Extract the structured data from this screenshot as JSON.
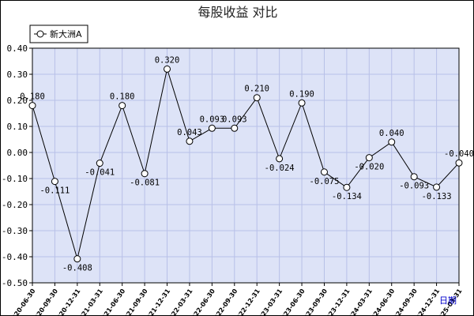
{
  "chart_data": {
    "type": "line",
    "title": "每股收益  对比",
    "xlabel": "日期",
    "ylabel": "",
    "ylim": [
      -0.5,
      0.4
    ],
    "yticks": [
      "0.40",
      "0.30",
      "0.20",
      "0.10",
      "0.00",
      "-0.10",
      "-0.20",
      "-0.30",
      "-0.40",
      "-0.50"
    ],
    "grid": true,
    "legend_position": "top-left",
    "colors": {
      "plot_background": "#dde3f7",
      "grid": "#b8c0e8",
      "line": "#000000",
      "marker_fill": "#ffffff"
    },
    "categories": [
      "2020-06-30",
      "2020-09-30",
      "2020-12-31",
      "2021-03-31",
      "2021-06-30",
      "2021-09-30",
      "2021-12-31",
      "2022-03-31",
      "2022-06-30",
      "2022-09-30",
      "2022-12-31",
      "2023-03-31",
      "2023-06-30",
      "2023-09-30",
      "2023-12-31",
      "2024-03-31",
      "2024-06-30",
      "2024-09-30",
      "2024-12-31",
      "2025-03-31"
    ],
    "series": [
      {
        "name": "新大洲A",
        "values": [
          0.18,
          -0.111,
          -0.408,
          -0.041,
          0.18,
          -0.081,
          0.32,
          0.043,
          0.093,
          0.093,
          0.21,
          -0.024,
          0.19,
          -0.075,
          -0.134,
          -0.02,
          0.04,
          -0.093,
          -0.133,
          -0.04
        ],
        "labels": [
          "0.180",
          "-0.111",
          "-0.408",
          "-0.041",
          "0.180",
          "-0.081",
          "0.320",
          "0.043",
          "0.093",
          "0.093",
          "0.210",
          "-0.024",
          "0.190",
          "-0.075",
          "-0.134",
          "-0.020",
          "0.040",
          "-0.093",
          "-0.133",
          "-0.040"
        ]
      }
    ]
  }
}
